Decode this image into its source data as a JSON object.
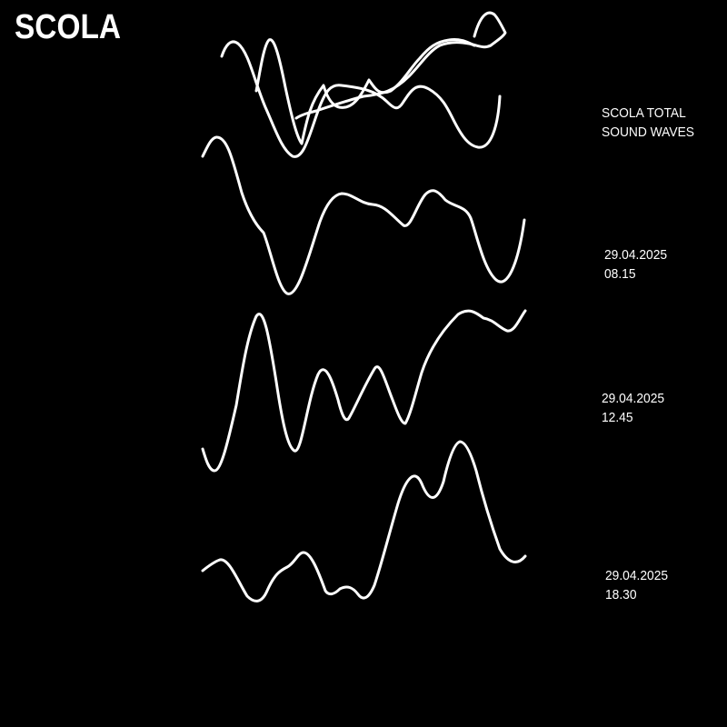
{
  "brand": {
    "name": "SCOLA"
  },
  "caption": {
    "line1": "SCOLA TOTAL",
    "line2": "SOUND WAVES"
  },
  "recordings": [
    {
      "date": "29.04.2025",
      "time": "08.15"
    },
    {
      "date": "29.04.2025",
      "time": "12.45"
    },
    {
      "date": "29.04.2025",
      "time": "18.30"
    }
  ],
  "colors": {
    "background": "#000000",
    "foreground": "#ffffff"
  }
}
